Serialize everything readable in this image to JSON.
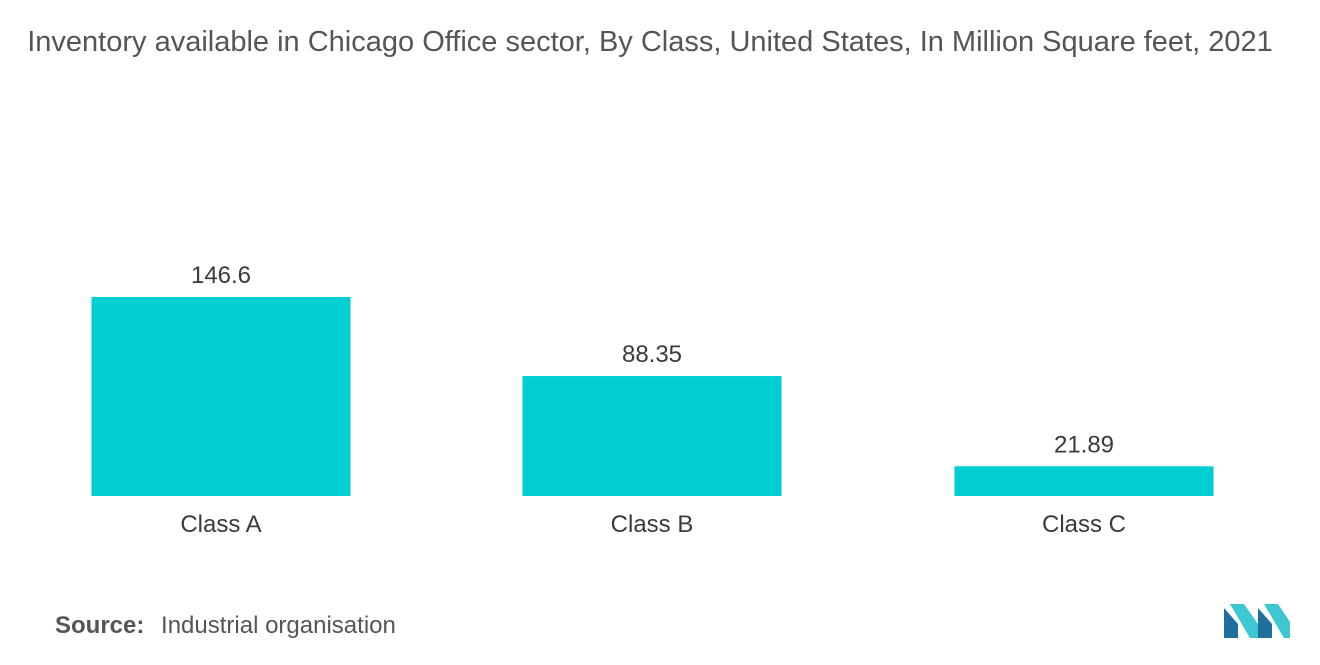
{
  "chart_data": {
    "type": "bar",
    "title": "Inventory available in Chicago Office sector, By Class, United States, In Million Square feet, 2021",
    "categories": [
      "Class A",
      "Class B",
      "Class C"
    ],
    "values": [
      146.6,
      88.35,
      21.89
    ],
    "value_labels": [
      "146.6",
      "88.35",
      "21.89"
    ],
    "bar_color": "#00ced1",
    "xlabel": "",
    "ylabel": "",
    "ylim": [
      0,
      146.6
    ],
    "grid": false,
    "legend": "none"
  },
  "source": {
    "label": "Source:",
    "text": "Industrial organisation"
  },
  "logo": {
    "icon": "mordor-logo-icon",
    "colors": [
      "#1f6f9f",
      "#3cc7d2"
    ]
  }
}
